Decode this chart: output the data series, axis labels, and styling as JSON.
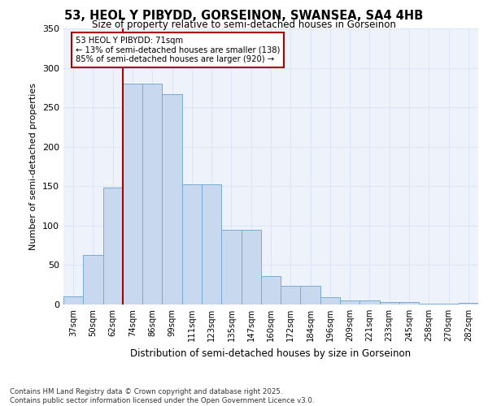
{
  "title_line1": "53, HEOL Y PIBYDD, GORSEINON, SWANSEA, SA4 4HB",
  "title_line2": "Size of property relative to semi-detached houses in Gorseinon",
  "xlabel": "Distribution of semi-detached houses by size in Gorseinon",
  "ylabel": "Number of semi-detached properties",
  "categories": [
    "37sqm",
    "50sqm",
    "62sqm",
    "74sqm",
    "86sqm",
    "99sqm",
    "111sqm",
    "123sqm",
    "135sqm",
    "147sqm",
    "160sqm",
    "172sqm",
    "184sqm",
    "196sqm",
    "209sqm",
    "221sqm",
    "233sqm",
    "245sqm",
    "258sqm",
    "270sqm",
    "282sqm"
  ],
  "values": [
    10,
    63,
    148,
    280,
    280,
    267,
    152,
    152,
    95,
    95,
    36,
    24,
    24,
    9,
    5,
    5,
    3,
    3,
    1,
    1,
    2
  ],
  "bar_color": "#c8d8ee",
  "bar_edge_color": "#7aaad0",
  "grid_color": "#dce6f5",
  "background_color": "#eef2fb",
  "annotation_text_line1": "53 HEOL Y PIBYDD: 71sqm",
  "annotation_text_line2": "← 13% of semi-detached houses are smaller (138)",
  "annotation_text_line3": "85% of semi-detached houses are larger (920) →",
  "vline_color": "#aa0000",
  "annotation_box_edge_color": "#aa0000",
  "footer_text": "Contains HM Land Registry data © Crown copyright and database right 2025.\nContains public sector information licensed under the Open Government Licence v3.0.",
  "ylim": [
    0,
    350
  ],
  "yticks": [
    0,
    50,
    100,
    150,
    200,
    250,
    300,
    350
  ],
  "vline_idx": 2.5
}
